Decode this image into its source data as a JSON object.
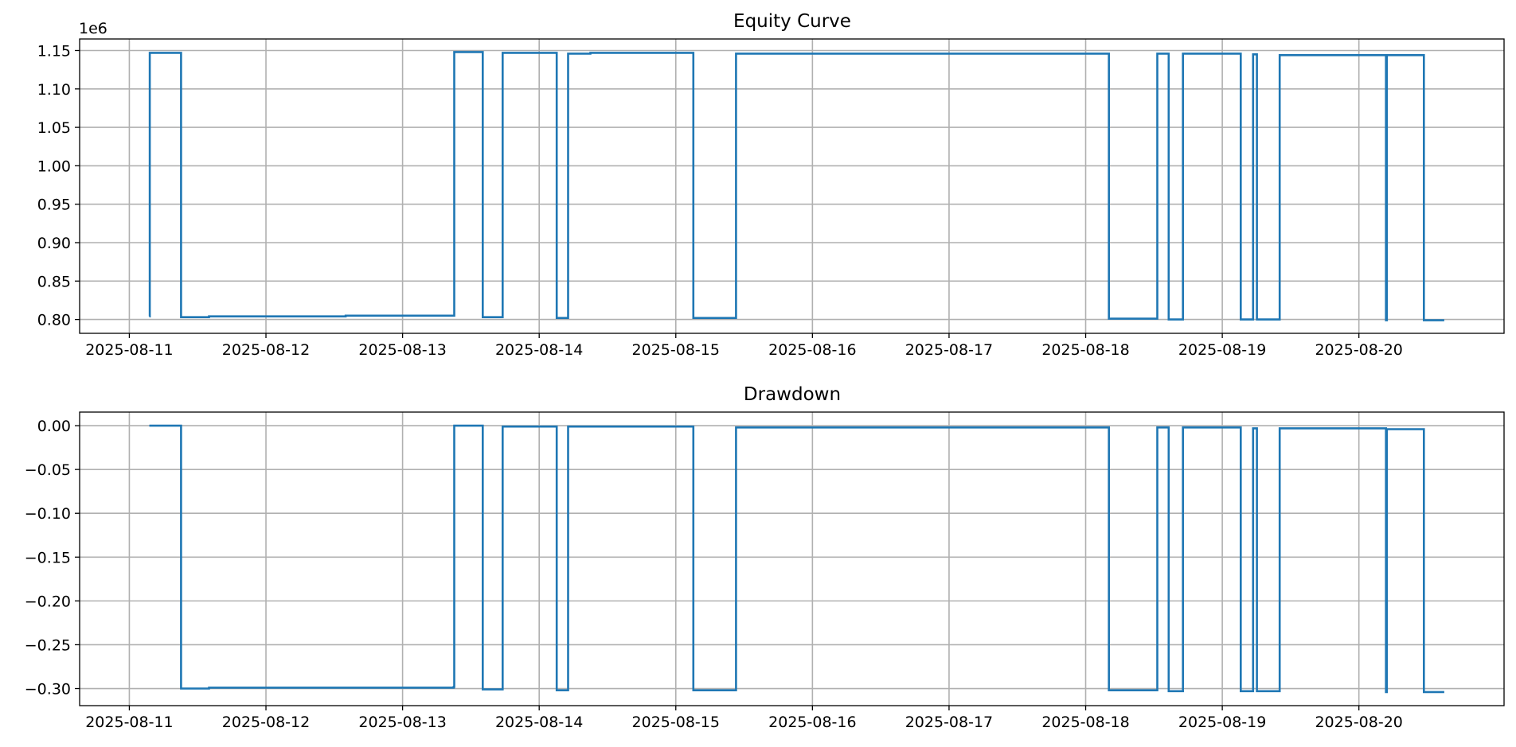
{
  "chart_data": [
    {
      "type": "line",
      "title": "Equity Curve",
      "xlabel": "",
      "ylabel": "",
      "y_offset_text": "1e6",
      "ylim": [
        0.782,
        1.165
      ],
      "x_ticks": [
        "2025-08-11",
        "2025-08-12",
        "2025-08-13",
        "2025-08-14",
        "2025-08-15",
        "2025-08-16",
        "2025-08-17",
        "2025-08-18",
        "2025-08-19",
        "2025-08-20"
      ],
      "y_ticks": [
        0.8,
        0.85,
        0.9,
        0.95,
        1.0,
        1.05,
        1.1,
        1.15
      ],
      "y_tick_labels": [
        "0.80",
        "0.85",
        "0.90",
        "0.95",
        "1.00",
        "1.05",
        "1.10",
        "1.15"
      ],
      "grid": true,
      "series": [
        {
          "color": "#1f77b4",
          "x": [
            "2025-08-11 03:30",
            "2025-08-11 03:35",
            "2025-08-11 03:40",
            "2025-08-11 09:00",
            "2025-08-11 09:05",
            "2025-08-11 09:40",
            "2025-08-11 14:00",
            "2025-08-12 09:30",
            "2025-08-12 09:35",
            "2025-08-12 14:00",
            "2025-08-13 09:00",
            "2025-08-13 09:05",
            "2025-08-13 14:00",
            "2025-08-13 14:05",
            "2025-08-13 17:30",
            "2025-08-13 17:35",
            "2025-08-14 03:00",
            "2025-08-14 03:05",
            "2025-08-14 05:00",
            "2025-08-14 05:05",
            "2025-08-14 09:00",
            "2025-08-15 03:00",
            "2025-08-15 03:05",
            "2025-08-15 10:30",
            "2025-08-15 10:35",
            "2025-08-16 12:00",
            "2025-08-18 04:00",
            "2025-08-18 04:05",
            "2025-08-18 12:30",
            "2025-08-18 12:35",
            "2025-08-18 14:30",
            "2025-08-18 14:35",
            "2025-08-18 17:00",
            "2025-08-18 17:05",
            "2025-08-19 03:10",
            "2025-08-19 03:15",
            "2025-08-19 05:20",
            "2025-08-19 05:25",
            "2025-08-19 06:00",
            "2025-08-19 06:05",
            "2025-08-19 10:00",
            "2025-08-19 10:05",
            "2025-08-20 04:40",
            "2025-08-20 04:45",
            "2025-08-20 04:55",
            "2025-08-20 05:00",
            "2025-08-20 11:20",
            "2025-08-20 11:25",
            "2025-08-20 15:00"
          ],
          "y": [
            0.804,
            1.147,
            1.147,
            1.147,
            0.803,
            0.803,
            0.804,
            0.804,
            0.804,
            0.805,
            0.805,
            1.148,
            1.148,
            0.803,
            0.803,
            1.147,
            1.147,
            0.802,
            0.802,
            1.146,
            1.147,
            1.147,
            0.802,
            0.802,
            1.146,
            1.146,
            1.146,
            0.801,
            0.801,
            1.146,
            1.146,
            0.8,
            0.8,
            1.146,
            1.146,
            0.8,
            0.8,
            1.145,
            1.145,
            0.8,
            0.8,
            1.144,
            1.144,
            0.799,
            1.144,
            1.144,
            1.144,
            0.799,
            0.799
          ]
        }
      ]
    },
    {
      "type": "line",
      "title": "Drawdown",
      "xlabel": "",
      "ylabel": "",
      "ylim": [
        -0.3195,
        0.0155
      ],
      "x_ticks": [
        "2025-08-11",
        "2025-08-12",
        "2025-08-13",
        "2025-08-14",
        "2025-08-15",
        "2025-08-16",
        "2025-08-17",
        "2025-08-18",
        "2025-08-19",
        "2025-08-20"
      ],
      "y_ticks": [
        0.0,
        -0.05,
        -0.1,
        -0.15,
        -0.2,
        -0.25,
        -0.3
      ],
      "y_tick_labels": [
        "0.00",
        "−0.05",
        "−0.10",
        "−0.15",
        "−0.20",
        "−0.25",
        "−0.30"
      ],
      "grid": true,
      "series": [
        {
          "color": "#1f77b4",
          "x": [
            "2025-08-11 03:30",
            "2025-08-11 09:00",
            "2025-08-11 09:05",
            "2025-08-11 14:00",
            "2025-08-12 14:00",
            "2025-08-13 09:00",
            "2025-08-13 09:05",
            "2025-08-13 14:00",
            "2025-08-13 14:05",
            "2025-08-13 17:30",
            "2025-08-13 17:35",
            "2025-08-14 03:00",
            "2025-08-14 03:05",
            "2025-08-14 05:00",
            "2025-08-14 05:05",
            "2025-08-15 03:00",
            "2025-08-15 03:05",
            "2025-08-15 10:30",
            "2025-08-15 10:35",
            "2025-08-18 04:00",
            "2025-08-18 04:05",
            "2025-08-18 12:30",
            "2025-08-18 12:35",
            "2025-08-18 14:30",
            "2025-08-18 14:35",
            "2025-08-18 17:00",
            "2025-08-18 17:05",
            "2025-08-19 03:10",
            "2025-08-19 03:15",
            "2025-08-19 05:20",
            "2025-08-19 05:25",
            "2025-08-19 06:00",
            "2025-08-19 06:05",
            "2025-08-19 10:00",
            "2025-08-19 10:05",
            "2025-08-20 04:40",
            "2025-08-20 04:45",
            "2025-08-20 04:55",
            "2025-08-20 05:00",
            "2025-08-20 11:20",
            "2025-08-20 11:25",
            "2025-08-20 15:00"
          ],
          "y": [
            0.0,
            0.0,
            -0.3,
            -0.299,
            -0.299,
            -0.298,
            0.0,
            0.0,
            -0.301,
            -0.301,
            -0.001,
            -0.001,
            -0.302,
            -0.302,
            -0.001,
            -0.001,
            -0.302,
            -0.302,
            -0.002,
            -0.002,
            -0.302,
            -0.302,
            -0.002,
            -0.002,
            -0.303,
            -0.303,
            -0.002,
            -0.002,
            -0.303,
            -0.303,
            -0.003,
            -0.003,
            -0.303,
            -0.303,
            -0.003,
            -0.003,
            -0.304,
            -0.004,
            -0.004,
            -0.004,
            -0.304,
            -0.304
          ]
        }
      ]
    }
  ]
}
